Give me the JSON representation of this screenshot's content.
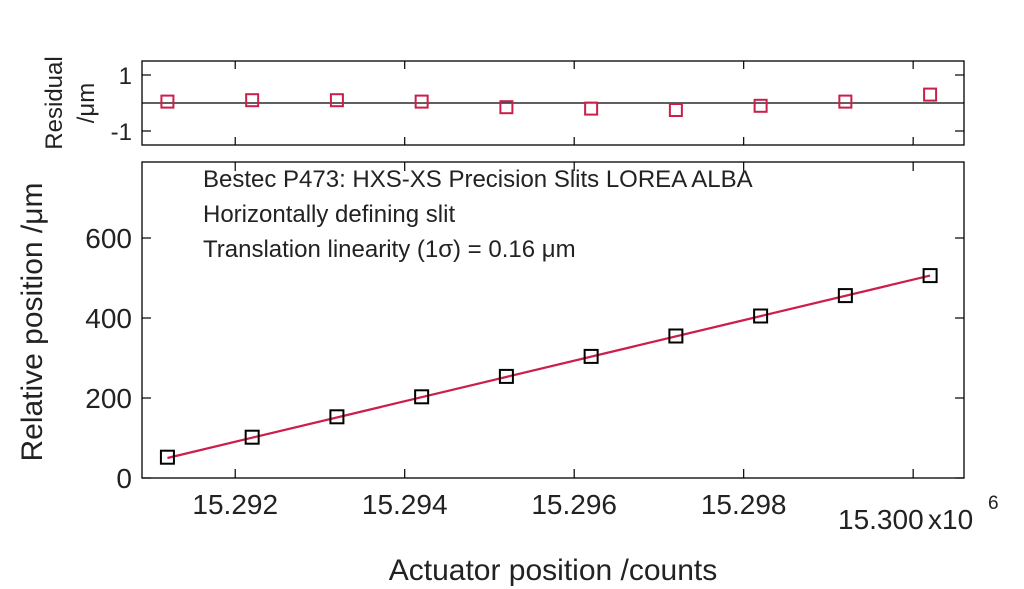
{
  "chart_data": {
    "type": "scatter",
    "x_multiplier_label": "x10",
    "x_multiplier_exp": "6",
    "xlabel": "Actuator position /counts",
    "xlim": [
      15.2909,
      15.3006
    ],
    "x_ticks": [
      15.292,
      15.294,
      15.296,
      15.298,
      15.3
    ],
    "x_tick_labels": [
      "15.292",
      "15.294",
      "15.296",
      "15.298",
      "15.300"
    ],
    "annotations": [
      "Bestec P473: HXS-XS Precision Slits LOREA ALBA",
      "Horizontally defining slit",
      "Translation linearity (1σ) = 0.16 μm"
    ],
    "main": {
      "ylabel": "Relative position /μm",
      "ylim": [
        0,
        790
      ],
      "y_ticks": [
        0,
        200,
        400,
        600
      ],
      "y_tick_labels": [
        "0",
        "200",
        "400",
        "600"
      ],
      "fit_line": {
        "x": [
          15.2912,
          15.3002
        ],
        "y": [
          50,
          506
        ]
      },
      "series": [
        {
          "marker": "square",
          "color": "#000000",
          "x": [
            15.2912,
            15.2922,
            15.2932,
            15.2942,
            15.2952,
            15.2962,
            15.2972,
            15.2982,
            15.2992,
            15.3002
          ],
          "y": [
            52,
            102,
            153,
            203,
            254,
            304,
            355,
            405,
            456,
            506
          ]
        }
      ]
    },
    "residual": {
      "ylabel_line1": "Residual",
      "ylabel_line2": "/μm",
      "ylim": [
        -1.5,
        1.5
      ],
      "y_ticks": [
        1,
        -1
      ],
      "y_tick_labels": [
        "1",
        "-1"
      ],
      "zero_line": true,
      "series": [
        {
          "marker": "square",
          "color": "#cc1e4a",
          "x": [
            15.2912,
            15.2922,
            15.2932,
            15.2942,
            15.2952,
            15.2962,
            15.2972,
            15.2982,
            15.2992,
            15.3002
          ],
          "y": [
            0.05,
            0.1,
            0.1,
            0.05,
            -0.15,
            -0.2,
            -0.25,
            -0.1,
            0.05,
            0.3
          ]
        }
      ]
    },
    "fit_color": "#cc1e4a",
    "axis_color": "#000000"
  }
}
